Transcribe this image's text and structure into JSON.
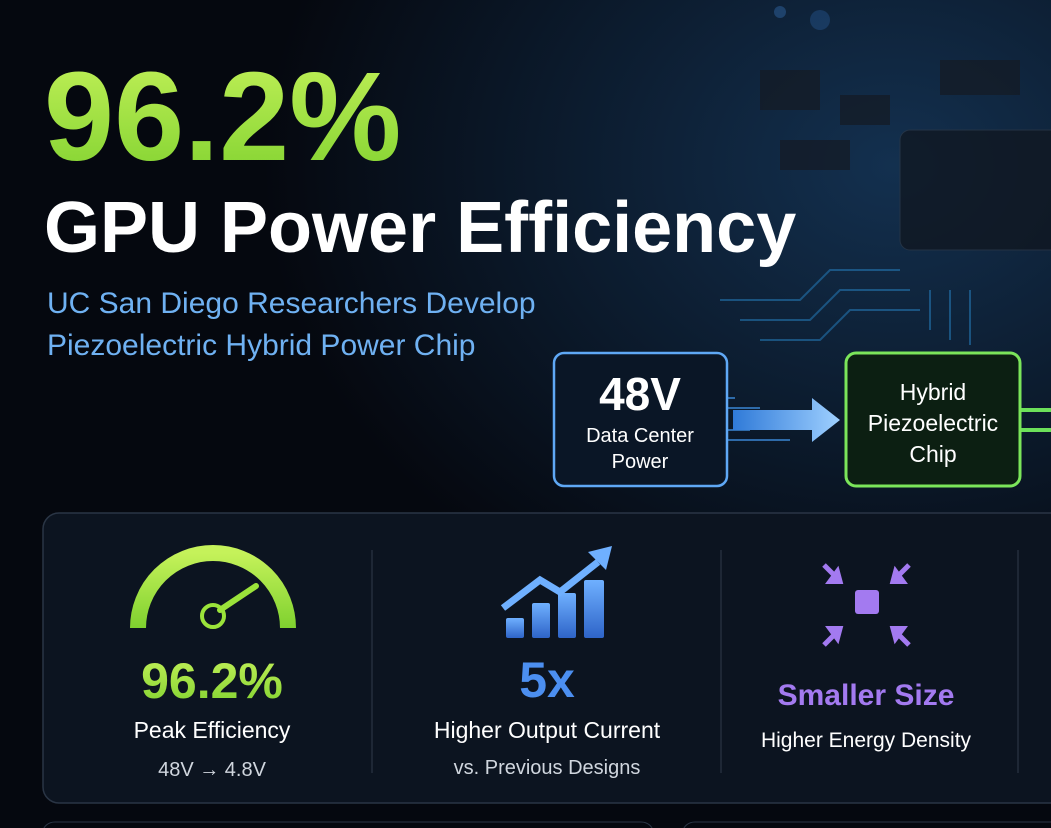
{
  "headline": {
    "stat": "96.2%",
    "title": "GPU Power Efficiency",
    "subtitle_lines": [
      "UC San Diego Researchers Develop",
      "Piezoelectric Hybrid Power Chip"
    ]
  },
  "diagram": {
    "source": {
      "value": "48V",
      "label_lines": [
        "Data Center",
        "Power"
      ]
    },
    "target": {
      "label_lines": [
        "Hybrid",
        "Piezoelectric",
        "Chip"
      ]
    }
  },
  "stats": [
    {
      "value": "96.2%",
      "label": "Peak Efficiency",
      "detail": "48V → 4.8V"
    },
    {
      "value": "5x",
      "label": "Higher Output Current",
      "detail": "vs. Previous Designs"
    },
    {
      "value": "Smaller Size",
      "label": "Higher Energy Density"
    }
  ]
}
